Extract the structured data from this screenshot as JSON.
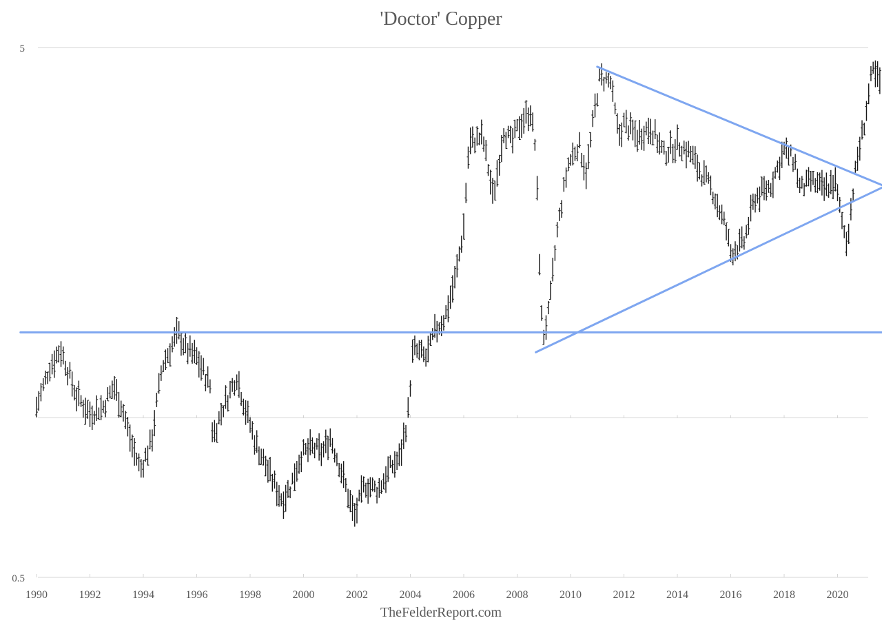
{
  "chart_data": {
    "type": "ohlc",
    "title": "'Doctor' Copper",
    "footer": "TheFelderReport.com",
    "y_scale": "log",
    "ylim": [
      0.5,
      5
    ],
    "xlim": [
      1990,
      2021.75
    ],
    "ytick_labels": [
      "5",
      "0.5"
    ],
    "ytick_values": [
      5,
      0.5
    ],
    "gridline_values": [
      5,
      1,
      0.5
    ],
    "xtick_values": [
      1990,
      1992,
      1994,
      1996,
      1998,
      2000,
      2002,
      2004,
      2006,
      2008,
      2010,
      2012,
      2014,
      2016,
      2018,
      2020
    ],
    "xtick_labels": [
      "1990",
      "1992",
      "1994",
      "1996",
      "1998",
      "2000",
      "2002",
      "2004",
      "2006",
      "2008",
      "2010",
      "2012",
      "2014",
      "2016",
      "2018",
      "2020"
    ],
    "grid": true,
    "bar_color": "#1a1a1a",
    "trendline_color": "#7ea6f0",
    "price_anchors": [
      [
        1990.0,
        1.05
      ],
      [
        1990.5,
        1.25
      ],
      [
        1990.9,
        1.35
      ],
      [
        1991.5,
        1.1
      ],
      [
        1992.0,
        1.02
      ],
      [
        1992.5,
        1.05
      ],
      [
        1992.9,
        1.15
      ],
      [
        1993.2,
        1.05
      ],
      [
        1993.6,
        0.88
      ],
      [
        1993.9,
        0.8
      ],
      [
        1994.3,
        0.9
      ],
      [
        1994.7,
        1.25
      ],
      [
        1995.1,
        1.38
      ],
      [
        1995.3,
        1.45
      ],
      [
        1995.6,
        1.35
      ],
      [
        1996.0,
        1.3
      ],
      [
        1996.5,
        1.15
      ],
      [
        1996.6,
        0.92
      ],
      [
        1997.0,
        1.05
      ],
      [
        1997.5,
        1.2
      ],
      [
        1997.8,
        1.05
      ],
      [
        1998.2,
        0.9
      ],
      [
        1998.8,
        0.77
      ],
      [
        1999.2,
        0.7
      ],
      [
        1999.5,
        0.74
      ],
      [
        1999.9,
        0.85
      ],
      [
        2000.3,
        0.88
      ],
      [
        2000.7,
        0.86
      ],
      [
        2001.0,
        0.92
      ],
      [
        2001.4,
        0.8
      ],
      [
        2001.9,
        0.65
      ],
      [
        2002.3,
        0.75
      ],
      [
        2002.8,
        0.73
      ],
      [
        2003.2,
        0.8
      ],
      [
        2003.6,
        0.84
      ],
      [
        2003.9,
        1.0
      ],
      [
        2004.1,
        1.35
      ],
      [
        2004.6,
        1.3
      ],
      [
        2004.9,
        1.45
      ],
      [
        2005.3,
        1.55
      ],
      [
        2005.7,
        1.85
      ],
      [
        2006.0,
        2.3
      ],
      [
        2006.2,
        3.3
      ],
      [
        2006.7,
        3.4
      ],
      [
        2006.9,
        3.0
      ],
      [
        2007.1,
        2.6
      ],
      [
        2007.5,
        3.5
      ],
      [
        2007.8,
        3.3
      ],
      [
        2008.1,
        3.6
      ],
      [
        2008.5,
        3.8
      ],
      [
        2008.7,
        3.2
      ],
      [
        2008.8,
        2.2
      ],
      [
        2008.95,
        1.4
      ],
      [
        2009.2,
        1.6
      ],
      [
        2009.5,
        2.25
      ],
      [
        2009.9,
        3.0
      ],
      [
        2010.3,
        3.3
      ],
      [
        2010.6,
        2.9
      ],
      [
        2010.9,
        3.8
      ],
      [
        2011.1,
        4.4
      ],
      [
        2011.5,
        4.3
      ],
      [
        2011.8,
        3.4
      ],
      [
        2012.0,
        3.6
      ],
      [
        2012.5,
        3.4
      ],
      [
        2013.0,
        3.55
      ],
      [
        2013.5,
        3.15
      ],
      [
        2014.0,
        3.3
      ],
      [
        2014.5,
        3.15
      ],
      [
        2014.9,
        2.9
      ],
      [
        2015.3,
        2.7
      ],
      [
        2015.8,
        2.3
      ],
      [
        2016.0,
        2.05
      ],
      [
        2016.5,
        2.15
      ],
      [
        2016.9,
        2.6
      ],
      [
        2017.5,
        2.75
      ],
      [
        2018.0,
        3.2
      ],
      [
        2018.4,
        3.05
      ],
      [
        2018.6,
        2.7
      ],
      [
        2019.0,
        2.8
      ],
      [
        2019.5,
        2.7
      ],
      [
        2019.9,
        2.8
      ],
      [
        2020.2,
        2.3
      ],
      [
        2020.35,
        2.15
      ],
      [
        2020.7,
        3.0
      ],
      [
        2021.0,
        3.6
      ],
      [
        2021.3,
        4.5
      ],
      [
        2021.6,
        4.3
      ]
    ],
    "trendlines": [
      {
        "type": "horizontal",
        "points": [
          [
            1989.4,
            1.45
          ],
          [
            2021.75,
            1.45
          ]
        ]
      },
      {
        "type": "resistance",
        "points": [
          [
            2011.0,
            4.6
          ],
          [
            2021.75,
            2.75
          ]
        ]
      },
      {
        "type": "support",
        "points": [
          [
            2008.7,
            1.33
          ],
          [
            2021.75,
            2.72
          ]
        ]
      }
    ]
  }
}
